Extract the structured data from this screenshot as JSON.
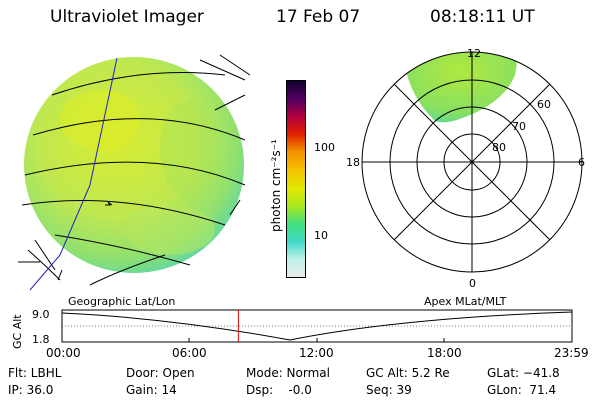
{
  "header": {
    "instrument": "Ultraviolet Imager",
    "date": "17 Feb 07",
    "time": "08:18:11 UT"
  },
  "colorbar": {
    "unit_label": "photon cm⁻²s⁻¹",
    "tick_100": "100",
    "tick_10": "10",
    "colors": [
      "#e8ece8",
      "#c0f0e8",
      "#40d8c8",
      "#40e080",
      "#a8e820",
      "#e0e800",
      "#f8c000",
      "#f09000",
      "#e02000",
      "#b00040",
      "#500060",
      "#100030"
    ]
  },
  "polar_plot": {
    "mlt_12": "12",
    "mlt_18": "18",
    "mlt_6": "6",
    "mlt_0": "0",
    "mlat_60": "60",
    "mlat_70": "70",
    "mlat_80": "80"
  },
  "panel_labels": {
    "left": "Geographic Lat/Lon",
    "right": "Apex MLat/MLT"
  },
  "altitude_plot": {
    "axis_label": "GC Alt",
    "y_max": "9.0",
    "y_min": "1.8",
    "x_ticks": [
      "00:00",
      "06:00",
      "12:00",
      "18:00",
      "23:59"
    ],
    "current_time_marker_hours": 8.3
  },
  "info": {
    "flt": "Flt: LBHL",
    "ip": "IP: 36.0",
    "door": "Door: Open",
    "gain": "Gain: 14",
    "mode": "Mode: Normal",
    "dsp": "Dsp:    -0.0",
    "gc_alt": "GC Alt: 5.2 Re",
    "seq": "Seq: 39",
    "glat": "GLat: −41.8",
    "glon": "GLon:  71.4"
  },
  "colors": {
    "aurora_main": "#c8e840",
    "aurora_edge": "#70d890",
    "marker": "#e00000",
    "grid_line": "#000000",
    "track_line": "#2020c0"
  }
}
